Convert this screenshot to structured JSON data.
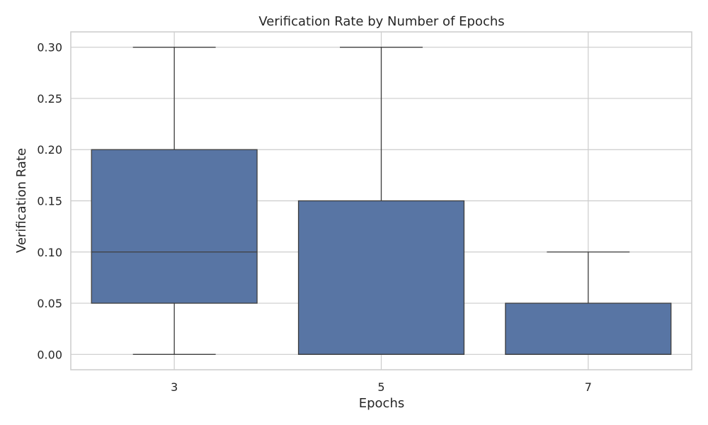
{
  "chart_data": {
    "type": "box",
    "title": "Verification Rate by Number of Epochs",
    "xlabel": "Epochs",
    "ylabel": "Verification Rate",
    "ylim": [
      -0.015,
      0.315
    ],
    "yticks": [
      0.0,
      0.05,
      0.1,
      0.15,
      0.2,
      0.25,
      0.3
    ],
    "ytick_labels": [
      "0.00",
      "0.05",
      "0.10",
      "0.15",
      "0.20",
      "0.25",
      "0.30"
    ],
    "grid": true,
    "box_color": "#5875a4",
    "edge_color": "#3f3f3f",
    "categories": [
      "3",
      "5",
      "7"
    ],
    "boxes": [
      {
        "category": "3",
        "whislo": 0.0,
        "q1": 0.05,
        "median": 0.1,
        "q3": 0.2,
        "whishi": 0.3
      },
      {
        "category": "5",
        "whislo": 0.0,
        "q1": 0.0,
        "median": 0.0,
        "q3": 0.15,
        "whishi": 0.3
      },
      {
        "category": "7",
        "whislo": 0.0,
        "q1": 0.0,
        "median": 0.0,
        "q3": 0.05,
        "whishi": 0.1
      }
    ]
  }
}
